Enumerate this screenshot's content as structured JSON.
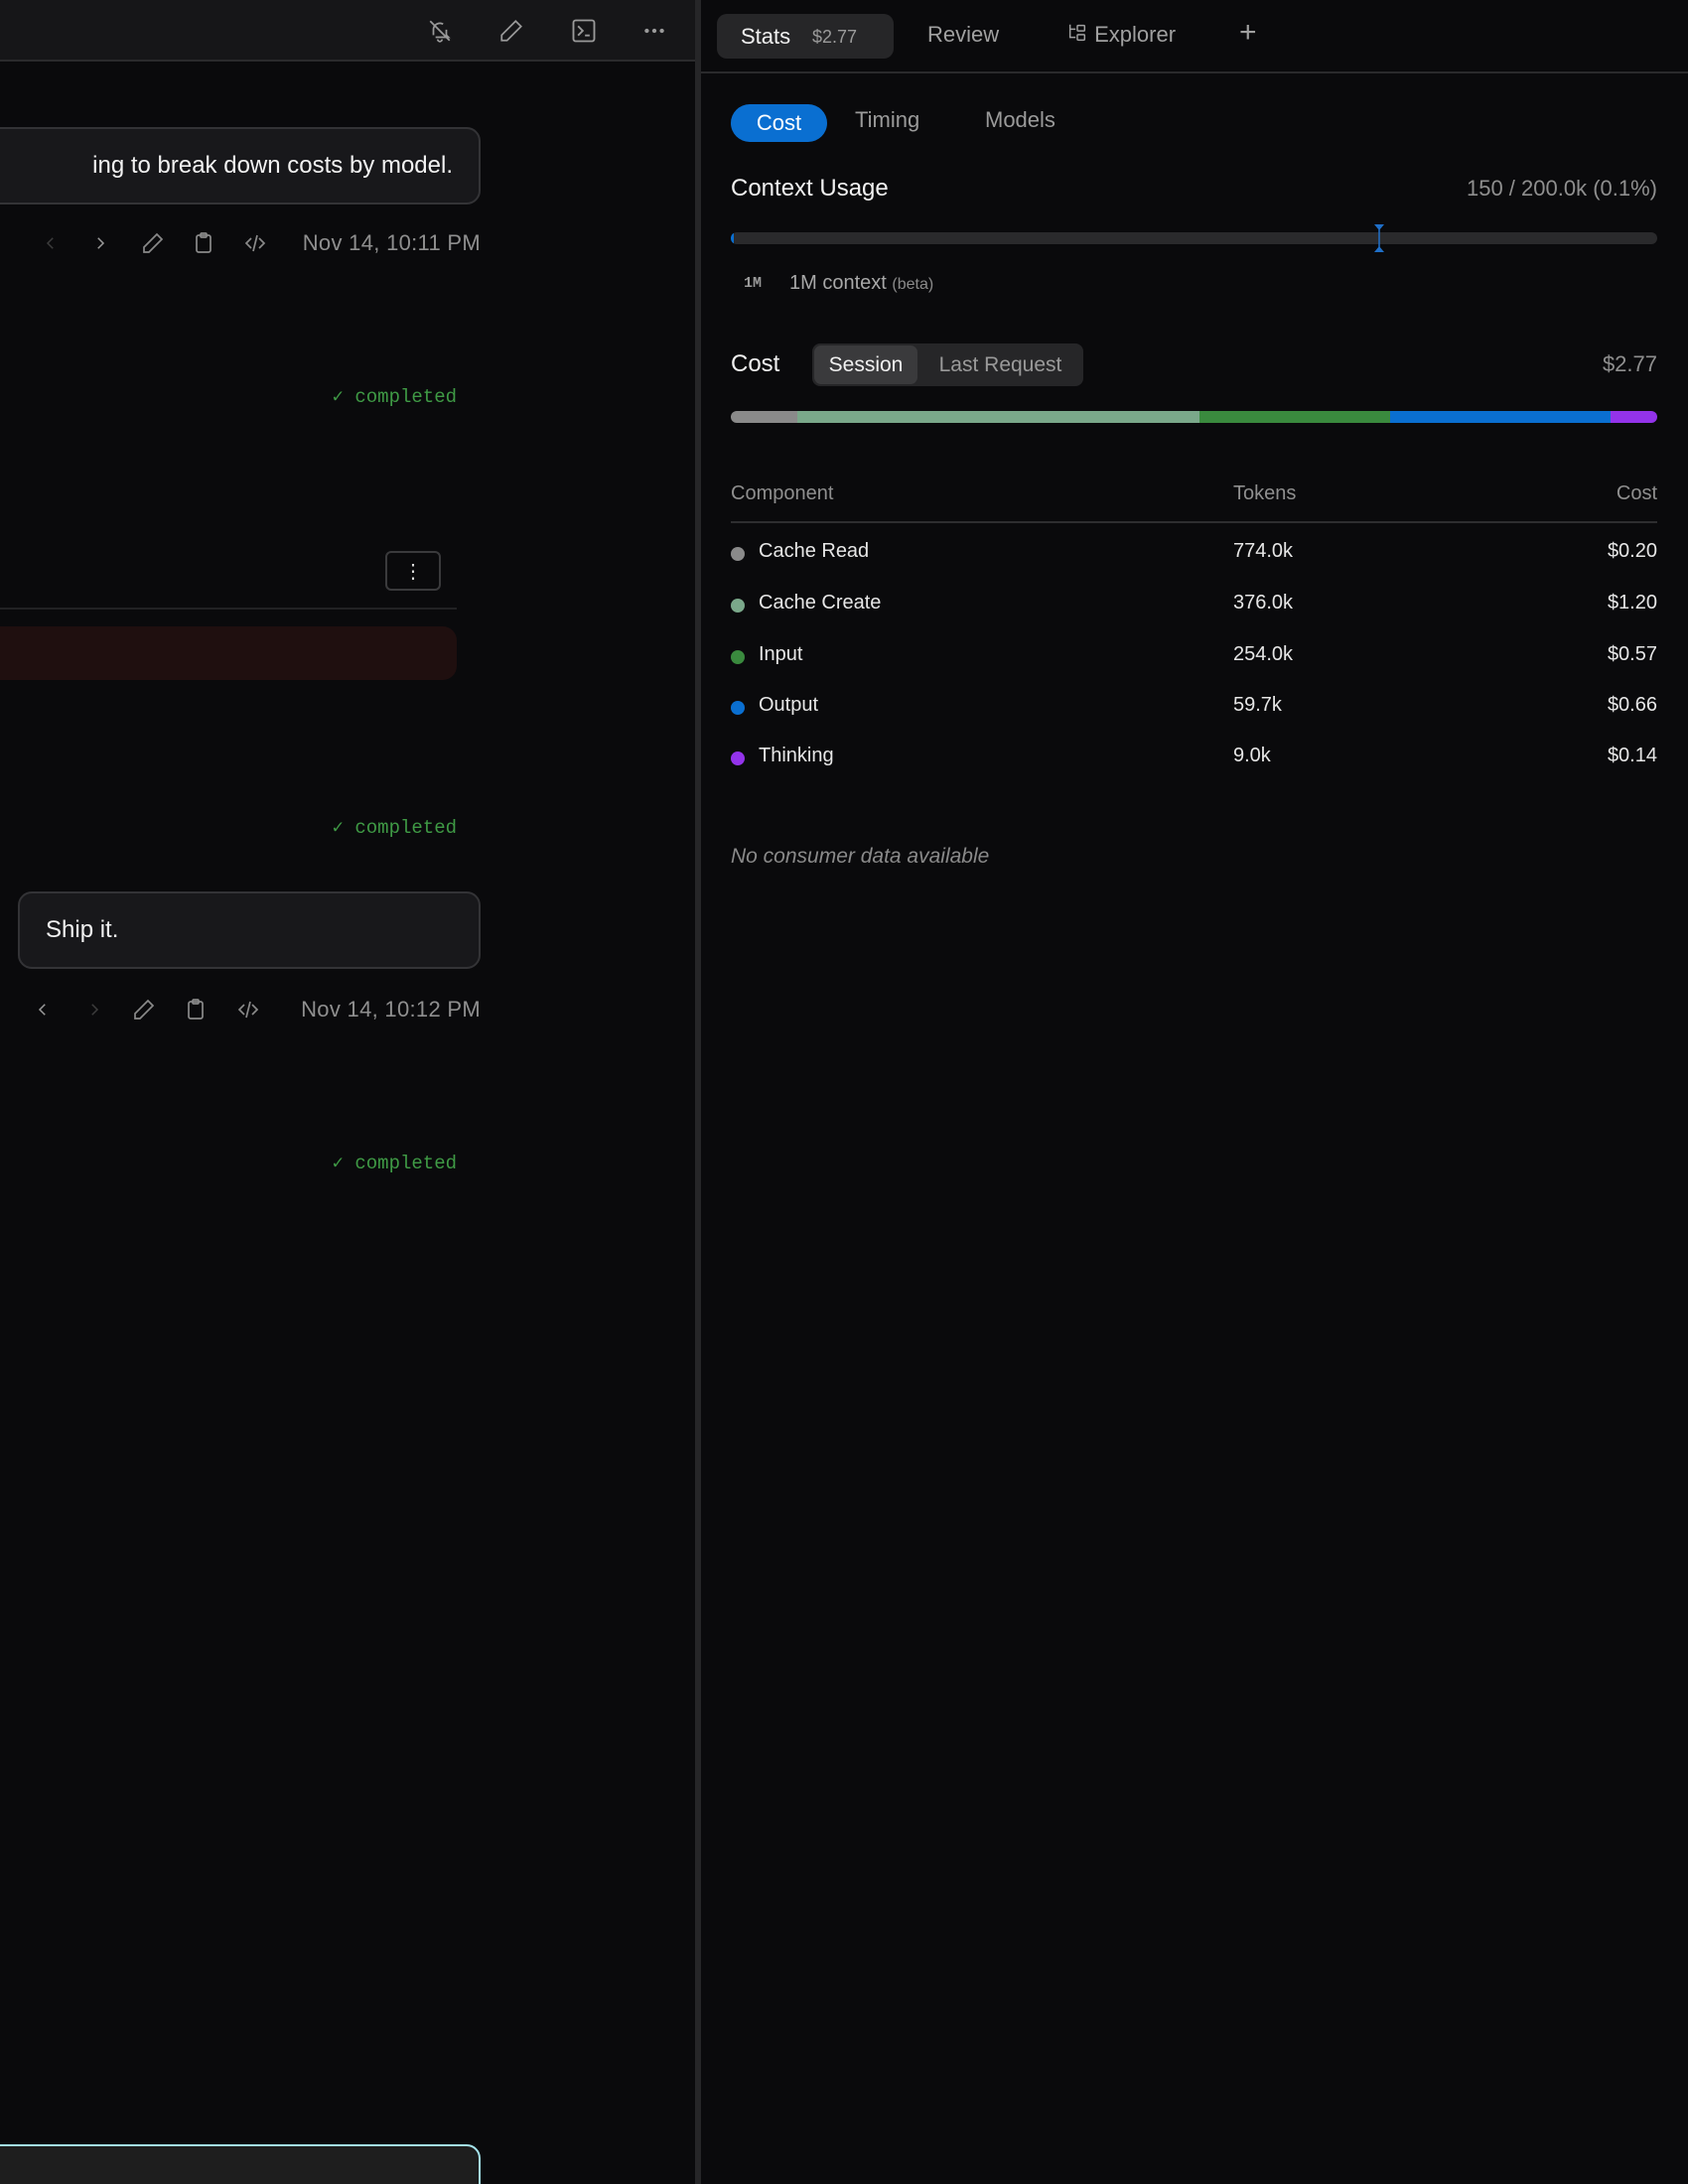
{
  "left": {
    "header_icons": [
      "bell-off-icon",
      "pencil-icon",
      "terminal-icon",
      "more-horizontal-icon"
    ],
    "messages": [
      {
        "text": "ing to break down costs by model.",
        "timestamp": "Nov 14, 10:11 PM"
      },
      {
        "text": "Ship it.",
        "timestamp": "Nov 14, 10:12 PM"
      }
    ],
    "status": [
      "completed",
      "completed",
      "completed"
    ],
    "more_button": "⋮"
  },
  "right": {
    "tabs": {
      "stats": "Stats",
      "stats_cost": "$2.77",
      "review": "Review",
      "explorer": "Explorer",
      "add": "+"
    },
    "subtabs": [
      "Cost",
      "Timing",
      "Models"
    ],
    "active_subtab": "Cost",
    "context": {
      "title": "Context Usage",
      "value": "150 / 200.0k (0.1%)",
      "fraction": 0.00075,
      "badge": "1M",
      "option_label": "1M context",
      "option_note": "(beta)"
    },
    "cost": {
      "title": "Cost",
      "toggle": [
        "Session",
        "Last Request"
      ],
      "active_toggle": "Session",
      "total": "$2.77"
    },
    "table": {
      "headers": [
        "Component",
        "Tokens",
        "Cost"
      ],
      "rows": [
        {
          "name": "Cache Read",
          "tokens": "774.0k",
          "cost": "$0.20",
          "value": 0.2,
          "color": "#8a8a8a"
        },
        {
          "name": "Cache Create",
          "tokens": "376.0k",
          "cost": "$1.20",
          "value": 1.2,
          "color": "#7aa88a"
        },
        {
          "name": "Input",
          "tokens": "254.0k",
          "cost": "$0.57",
          "value": 0.57,
          "color": "#3a8a3e"
        },
        {
          "name": "Output",
          "tokens": "59.7k",
          "cost": "$0.66",
          "value": 0.66,
          "color": "#0a6fd1"
        },
        {
          "name": "Thinking",
          "tokens": "9.0k",
          "cost": "$0.14",
          "value": 0.14,
          "color": "#9333ea"
        }
      ]
    },
    "empty_consumers": "No consumer data available"
  },
  "colors": {
    "accent": "#0a6fd1",
    "success": "#3f9a45",
    "input_border": "#a5e3ec"
  }
}
